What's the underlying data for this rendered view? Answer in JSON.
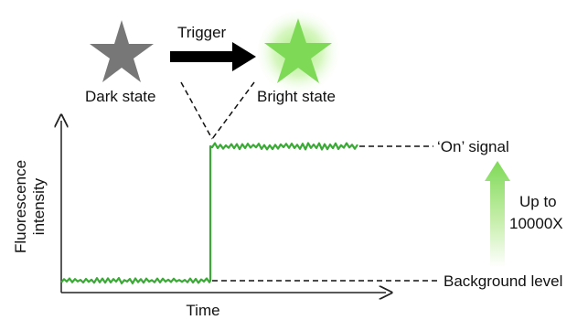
{
  "diagram": {
    "trigger_label": "Trigger",
    "dark_state_label": "Dark state",
    "bright_state_label": "Bright state",
    "on_signal_label": "‘On’ signal",
    "background_level_label": "Background level",
    "enhancement_line1": "Up to",
    "enhancement_line2": "10000X",
    "axis": {
      "x_label": "Time",
      "y_label_line1": "Fluorescence",
      "y_label_line2": "intensity"
    },
    "colors": {
      "dark_star": "#777777",
      "bright_star": "#7ed957",
      "trace": "#3aa935",
      "arrow": "#000000",
      "up_arrow_top": "#7ed957"
    },
    "icons": [
      "star-icon",
      "star-icon",
      "arrow-right-icon",
      "arrow-up-icon"
    ]
  }
}
